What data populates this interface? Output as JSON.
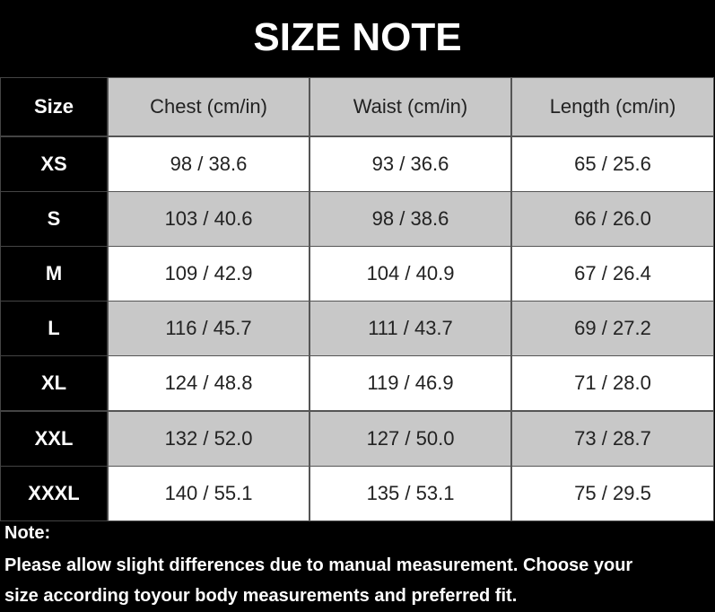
{
  "title": "SIZE NOTE",
  "table": {
    "header": [
      "Size",
      "Chest (cm/in)",
      "Waist (cm/in)",
      "Length (cm/in)"
    ],
    "rows": [
      [
        "XS",
        "98 / 38.6",
        "93 / 36.6",
        "65 / 25.6"
      ],
      [
        "S",
        "103 / 40.6",
        "98 / 38.6",
        "66 / 26.0"
      ],
      [
        "M",
        "109 / 42.9",
        "104 / 40.9",
        "67 / 26.4"
      ],
      [
        "L",
        "116 / 45.7",
        "111 / 43.7",
        "69 / 27.2"
      ],
      [
        "XL",
        "124 / 48.8",
        "119 / 46.9",
        "71 / 28.0"
      ],
      [
        "XXL",
        "132 / 52.0",
        "127 / 50.0",
        "73 / 28.7"
      ],
      [
        "XXXL",
        "140 / 55.1",
        "135 / 53.1",
        "75 / 29.5"
      ]
    ]
  },
  "note": {
    "heading": "Note:",
    "lines": [
      "Please allow slight differences due to manual measurement. Choose your",
      "size according toyour body measurements and preferred fit."
    ]
  }
}
